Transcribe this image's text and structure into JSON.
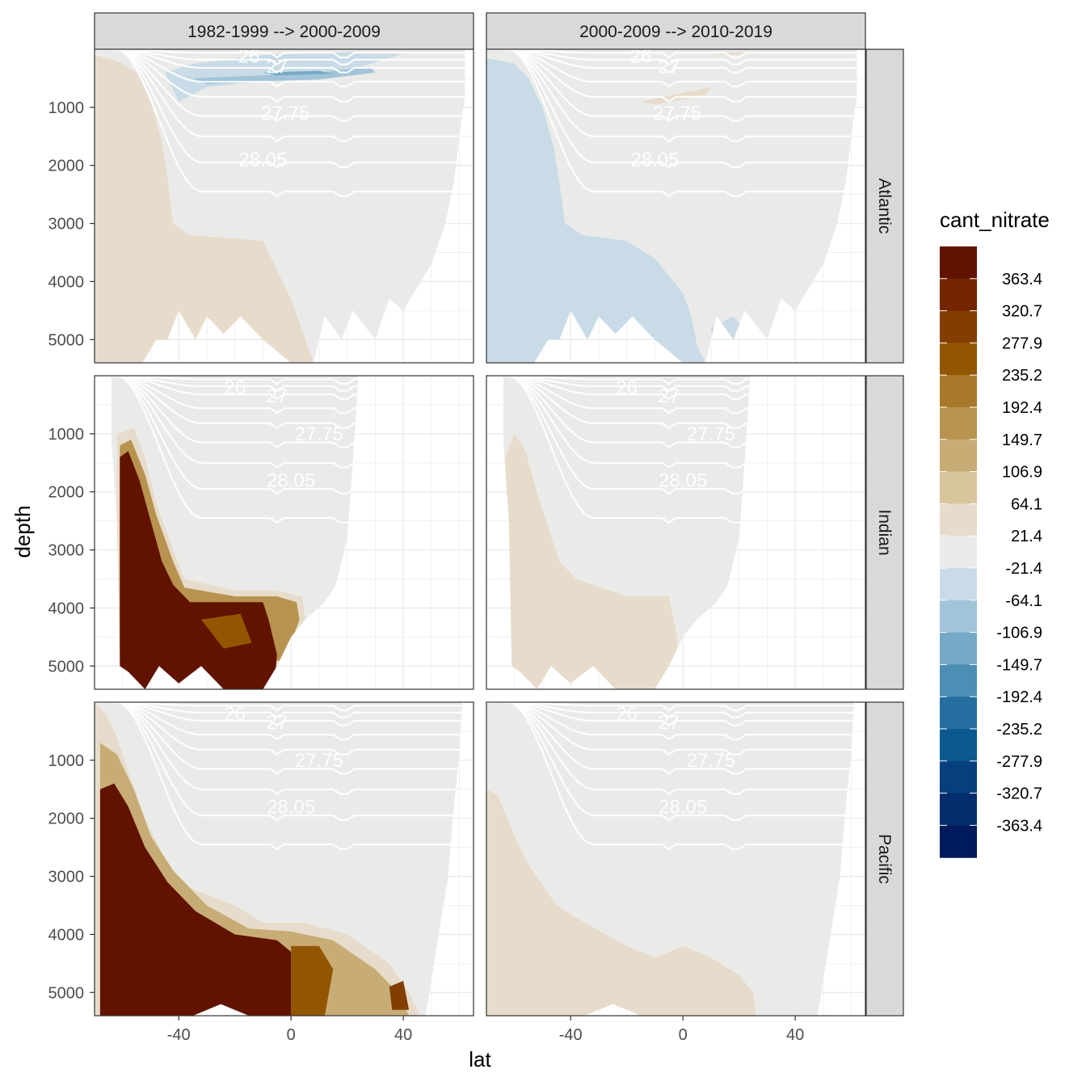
{
  "chart_data": {
    "type": "heatmap",
    "title": "",
    "xlabel": "lat",
    "ylabel": "depth",
    "xlim": [
      -70,
      65
    ],
    "ylim": [
      0,
      5400
    ],
    "x_ticks": [
      -40,
      0,
      40
    ],
    "y_ticks": [
      1000,
      2000,
      3000,
      4000,
      5000
    ],
    "columns": [
      "1982-1999 --> 2000-2009",
      "2000-2009 --> 2010-2019"
    ],
    "rows": [
      "Atlantic",
      "Indian",
      "Pacific"
    ],
    "legend": {
      "title": "cant_nitrate",
      "labels": [
        "363.4",
        "320.7",
        "277.9",
        "235.2",
        "192.4",
        "149.7",
        "106.9",
        "64.1",
        "21.4",
        "-21.4",
        "-64.1",
        "-106.9",
        "-149.7",
        "-192.4",
        "-235.2",
        "-277.9",
        "-320.7",
        "-363.4"
      ],
      "colors": [
        "#611300",
        "#732500",
        "#843d00",
        "#935600",
        "#a8792b",
        "#b89350",
        "#c8ac75",
        "#d9c59c",
        "#e7dccb",
        "#eaebe9",
        "#c8dbe6",
        "#a1c4d8",
        "#75a9c6",
        "#4d8eb4",
        "#2570a1",
        "#0c5990",
        "#063f7e",
        "#032d6d",
        "#001a5c"
      ]
    },
    "isopycnal_labels": [
      "26",
      "27",
      "27.75",
      "28.05"
    ],
    "panels": [
      {
        "row": "Atlantic",
        "column": "1982-1999 --> 2000-2009",
        "dominant": "21.4 to 64.1 south of ~-35 lat below 500 m, -21.4 to 21.4 elsewhere",
        "features": [
          "negative -21.4 to -106.9 band 100-900 m between -40 and 30 lat"
        ]
      },
      {
        "row": "Atlantic",
        "column": "2000-2009 --> 2010-2019",
        "dominant": "-21.4 to -64.1 south of ~-35 lat and deep water, -21.4 to 21.4 elsewhere",
        "features": [
          "21.4 to 64.1 patch near 800 m around -5 to 5 lat"
        ]
      },
      {
        "row": "Indian",
        "column": "1982-1999 --> 2000-2009",
        "dominant": ">363.4 in deep southern Indian below 1200 m",
        "features": [
          "gradient 64.1-320.7 along -20 to 0 lat at 3700-4700 m"
        ]
      },
      {
        "row": "Indian",
        "column": "2000-2009 --> 2010-2019",
        "dominant": "21.4 to 64.1 south and deep, -21.4 to 21.4 elsewhere",
        "features": []
      },
      {
        "row": "Pacific",
        "column": "1982-1999 --> 2000-2009",
        "dominant": ">363.4 deep southern Pacific",
        "features": [
          "gradient extends north to ~40 lat near 4000-5400 m"
        ]
      },
      {
        "row": "Pacific",
        "column": "2000-2009 --> 2010-2019",
        "dominant": "21.4 to 64.1 south and deep, -21.4 to 21.4 elsewhere",
        "features": []
      }
    ]
  }
}
